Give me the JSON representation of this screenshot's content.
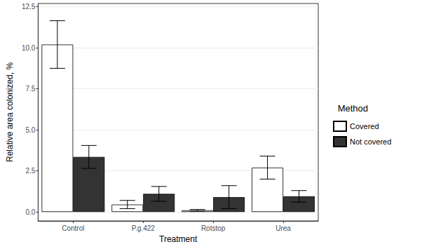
{
  "chart_data": {
    "type": "bar",
    "x_label": "Treatment",
    "y_label": "Relative area colonized, %",
    "legend_title": "Method",
    "categories": [
      "Control",
      "P.g.422",
      "Rotstop",
      "Urea"
    ],
    "series": [
      {
        "name": "Covered",
        "color": "#ffffff",
        "values": [
          10.2,
          0.45,
          0.1,
          2.7
        ],
        "errors": [
          1.45,
          0.25,
          0.05,
          0.7
        ]
      },
      {
        "name": "Not covered",
        "color": "#333333",
        "values": [
          3.35,
          1.1,
          0.9,
          0.95
        ],
        "errors": [
          0.7,
          0.45,
          0.7,
          0.35
        ]
      }
    ],
    "ylim": [
      -0.55,
      12.7
    ],
    "yticks": [
      {
        "value": 0,
        "label": "0.0"
      },
      {
        "value": 2.5,
        "label": "2.5"
      },
      {
        "value": 5,
        "label": "5.0"
      },
      {
        "value": 7.5,
        "label": "7.5"
      },
      {
        "value": 10,
        "label": "10.0"
      },
      {
        "value": 12.5,
        "label": "12.5"
      }
    ],
    "grid": true,
    "legend": "right"
  }
}
